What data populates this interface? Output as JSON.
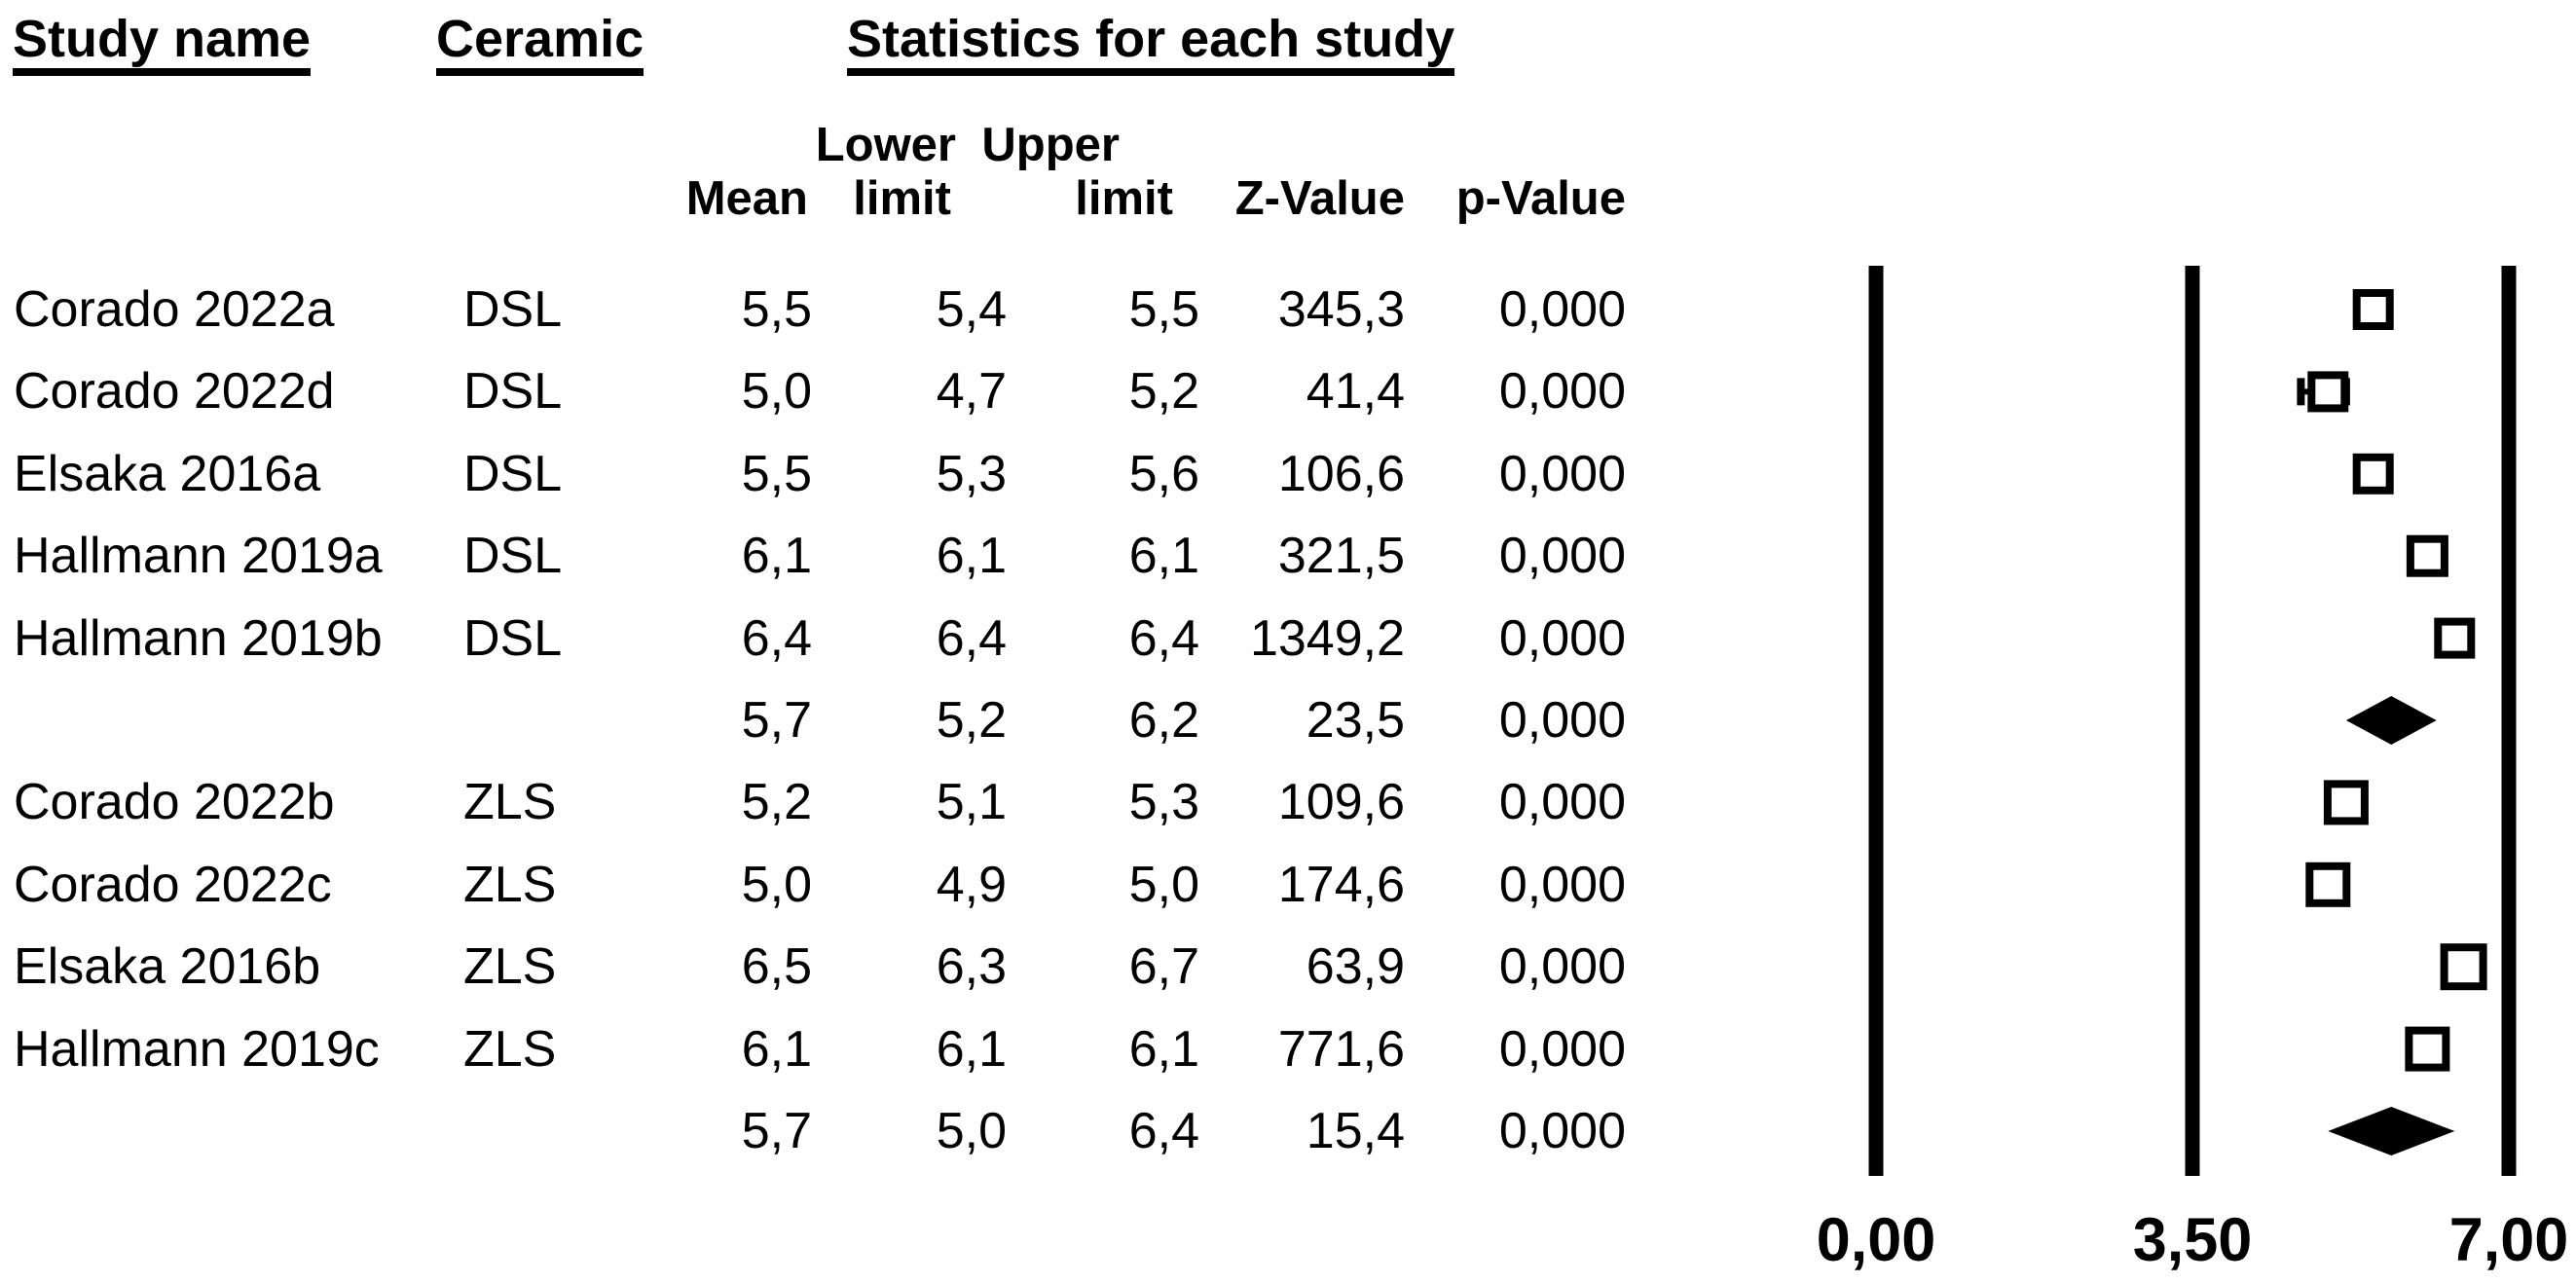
{
  "chart_data": {
    "type": "scatter",
    "subtype": "forest-plot",
    "title": "",
    "decimal_separator": ",",
    "colors": {
      "foreground": "#000000",
      "background": "#ffffff"
    },
    "table_headers": {
      "study": "Study name",
      "ceramic": "Ceramic",
      "stats_group": "Statistics for each study",
      "line1": {
        "lower": "Lower",
        "upper": "Upper"
      },
      "line2": {
        "mean": "Mean",
        "lower": "limit",
        "upper": "limit",
        "z": "Z-Value",
        "p": "p-Value"
      }
    },
    "studies": [
      {
        "name": "Corado 2022a",
        "ceramic": "DSL",
        "mean": 5.5,
        "lower": 5.4,
        "upper": 5.5,
        "z": 345.3,
        "p": 0.0,
        "labels": {
          "mean": "5,5",
          "lower": "5,4",
          "upper": "5,5",
          "z": "345,3",
          "p": "0,000"
        },
        "marker": "square",
        "marker_size": 42
      },
      {
        "name": "Corado 2022d",
        "ceramic": "DSL",
        "mean": 5.0,
        "lower": 4.7,
        "upper": 5.2,
        "z": 41.4,
        "p": 0.0,
        "labels": {
          "mean": "5,0",
          "lower": "4,7",
          "upper": "5,2",
          "z": "41,4",
          "p": "0,000"
        },
        "marker": "square",
        "marker_size": 42
      },
      {
        "name": "Elsaka 2016a",
        "ceramic": "DSL",
        "mean": 5.5,
        "lower": 5.3,
        "upper": 5.6,
        "z": 106.6,
        "p": 0.0,
        "labels": {
          "mean": "5,5",
          "lower": "5,3",
          "upper": "5,6",
          "z": "106,6",
          "p": "0,000"
        },
        "marker": "square",
        "marker_size": 42
      },
      {
        "name": "Hallmann 2019a",
        "ceramic": "DSL",
        "mean": 6.1,
        "lower": 6.1,
        "upper": 6.1,
        "z": 321.5,
        "p": 0.0,
        "labels": {
          "mean": "6,1",
          "lower": "6,1",
          "upper": "6,1",
          "z": "321,5",
          "p": "0,000"
        },
        "marker": "square",
        "marker_size": 43
      },
      {
        "name": "Hallmann 2019b",
        "ceramic": "DSL",
        "mean": 6.4,
        "lower": 6.4,
        "upper": 6.4,
        "z": 1349.2,
        "p": 0.0,
        "labels": {
          "mean": "6,4",
          "lower": "6,4",
          "upper": "6,4",
          "z": "1349,2",
          "p": "0,000"
        },
        "marker": "square",
        "marker_size": 42
      },
      {
        "name": "",
        "ceramic": "",
        "mean": 5.7,
        "lower": 5.2,
        "upper": 6.2,
        "z": 23.5,
        "p": 0.0,
        "labels": {
          "mean": "5,7",
          "lower": "5,2",
          "upper": "6,2",
          "z": "23,5",
          "p": "0,000"
        },
        "marker": "diamond",
        "marker_size": 50
      },
      {
        "name": "Corado 2022b",
        "ceramic": "ZLS",
        "mean": 5.2,
        "lower": 5.1,
        "upper": 5.3,
        "z": 109.6,
        "p": 0.0,
        "labels": {
          "mean": "5,2",
          "lower": "5,1",
          "upper": "5,3",
          "z": "109,6",
          "p": "0,000"
        },
        "marker": "square",
        "marker_size": 46
      },
      {
        "name": "Corado 2022c",
        "ceramic": "ZLS",
        "mean": 5.0,
        "lower": 4.9,
        "upper": 5.0,
        "z": 174.6,
        "p": 0.0,
        "labels": {
          "mean": "5,0",
          "lower": "4,9",
          "upper": "5,0",
          "z": "174,6",
          "p": "0,000"
        },
        "marker": "square",
        "marker_size": 46
      },
      {
        "name": "Elsaka 2016b",
        "ceramic": "ZLS",
        "mean": 6.5,
        "lower": 6.3,
        "upper": 6.7,
        "z": 63.9,
        "p": 0.0,
        "labels": {
          "mean": "6,5",
          "lower": "6,3",
          "upper": "6,7",
          "z": "63,9",
          "p": "0,000"
        },
        "marker": "square",
        "marker_size": 48
      },
      {
        "name": "Hallmann 2019c",
        "ceramic": "ZLS",
        "mean": 6.1,
        "lower": 6.1,
        "upper": 6.1,
        "z": 771.6,
        "p": 0.0,
        "labels": {
          "mean": "6,1",
          "lower": "6,1",
          "upper": "6,1",
          "z": "771,6",
          "p": "0,000"
        },
        "marker": "square",
        "marker_size": 46
      },
      {
        "name": "",
        "ceramic": "",
        "mean": 5.7,
        "lower": 5.0,
        "upper": 6.4,
        "z": 15.4,
        "p": 0.0,
        "labels": {
          "mean": "5,7",
          "lower": "5,0",
          "upper": "6,4",
          "z": "15,4",
          "p": "0,000"
        },
        "marker": "diamond",
        "marker_size": 50
      }
    ],
    "xaxis": {
      "min": 0,
      "max": 7,
      "grid": false,
      "ticks": [
        {
          "value": 0,
          "label": "0,00"
        },
        {
          "value": 3.5,
          "label": "3,50"
        },
        {
          "value": 7,
          "label": "7,00"
        }
      ]
    }
  }
}
